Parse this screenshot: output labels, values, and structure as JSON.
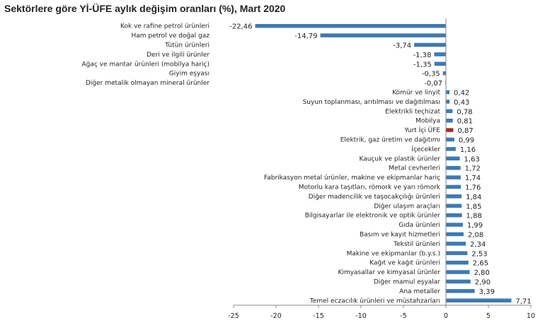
{
  "chart_data": {
    "type": "bar",
    "orientation": "horizontal",
    "title": "Sektörlere göre Yİ-ÜFE aylık değişim oranları (%), Mart 2020",
    "xlim": [
      -25,
      10
    ],
    "xticks": [
      "-25",
      "-20",
      "-15",
      "-10",
      "-5",
      "0",
      "5",
      "10"
    ],
    "grid": false,
    "bar_color": "#3d7ab3",
    "highlight_color": "#a52a2a",
    "highlight_category": "Yurt İçi ÜFE",
    "categories": [
      "Kok ve rafine petrol ürünleri",
      "Ham petrol ve doğal gaz",
      "Tütün ürünleri",
      "Deri ve ilgili ürünler",
      "Ağaç ve mantar ürünleri (mobilya hariç)",
      "Giyim eşyası",
      "Diğer metalik olmayan mineral ürünler",
      "Kömür ve linyit",
      "Suyun toplanması, arıtılması ve dağıtılması",
      "Elektrikli teçhizat",
      "Mobilya",
      "Yurt İçi ÜFE",
      "Elektrik, gaz üretim ve dağıtımı",
      "İçecekler",
      "Kauçuk ve plastik ürünler",
      "Metal cevherleri",
      "Fabrikasyon metal ürünler, makine ve ekipmanlar hariç",
      "Motorlu kara taşıtları, römork ve yarı römork",
      "Diğer madencilik ve taşocakçılığı ürünleri",
      "Diğer ulaşım araçları",
      "Bilgisayarlar ile elektronik ve optik ürünler",
      "Gıda ürünleri",
      "Basım ve kayıt hizmetleri",
      "Tekstil ürünleri",
      "Makine ve ekipmanlar (b.y.s.)",
      "Kağıt ve kağıt ürünleri",
      "Kimyasallar ve kimyasal ürünler",
      "Diğer mamul eşyalar",
      "Ana metaller",
      "Temel eczacılık ürünleri ve müstahzarları"
    ],
    "values": [
      -22.46,
      -14.79,
      -3.74,
      -1.38,
      -1.35,
      -0.35,
      -0.07,
      0.42,
      0.43,
      0.78,
      0.81,
      0.87,
      0.99,
      1.16,
      1.63,
      1.72,
      1.74,
      1.76,
      1.84,
      1.85,
      1.88,
      1.99,
      2.08,
      2.34,
      2.53,
      2.65,
      2.8,
      2.9,
      3.39,
      7.71
    ],
    "value_labels": [
      "-22,46",
      "-14,79",
      "-3,74",
      "-1,38",
      "-1,35",
      "-0,35",
      "-0,07",
      "0,42",
      "0,43",
      "0,78",
      "0,81",
      "0,87",
      "0,99",
      "1,16",
      "1,63",
      "1,72",
      "1,74",
      "1,76",
      "1,84",
      "1,85",
      "1,88",
      "1,99",
      "2,08",
      "2,34",
      "2,53",
      "2,65",
      "2,80",
      "2,90",
      "3,39",
      "7,71"
    ]
  }
}
